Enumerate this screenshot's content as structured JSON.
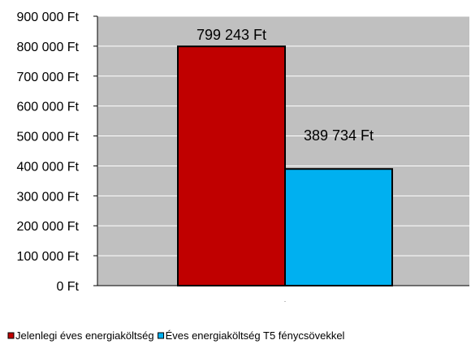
{
  "chart_data": {
    "type": "bar",
    "categories": [
      ""
    ],
    "series": [
      {
        "name": "Jelenlegi éves energiaköltség",
        "values": [
          799243
        ],
        "value_label": "799 243 Ft",
        "color": "#c00000"
      },
      {
        "name": "Éves energiaköltség T5 fénycsövekkel",
        "values": [
          389734
        ],
        "value_label": "389 734 Ft",
        "color": "#00b0f0"
      }
    ],
    "ylim": [
      0,
      900000
    ],
    "y_ticks": [
      {
        "value": 0,
        "label": "0 Ft"
      },
      {
        "value": 100000,
        "label": "100 000 Ft"
      },
      {
        "value": 200000,
        "label": "200 000 Ft"
      },
      {
        "value": 300000,
        "label": "300 000 Ft"
      },
      {
        "value": 400000,
        "label": "400 000 Ft"
      },
      {
        "value": 500000,
        "label": "500 000 Ft"
      },
      {
        "value": 600000,
        "label": "600 000 Ft"
      },
      {
        "value": 700000,
        "label": "700 000 Ft"
      },
      {
        "value": 800000,
        "label": "800 000 Ft"
      },
      {
        "value": 900000,
        "label": "900 000 Ft"
      }
    ],
    "title": "",
    "xlabel": "",
    "ylabel": "",
    "grid": true,
    "legend_position": "bottom-left",
    "plot_background": "#c0c0c0",
    "gridline_color": "#ffffff"
  }
}
